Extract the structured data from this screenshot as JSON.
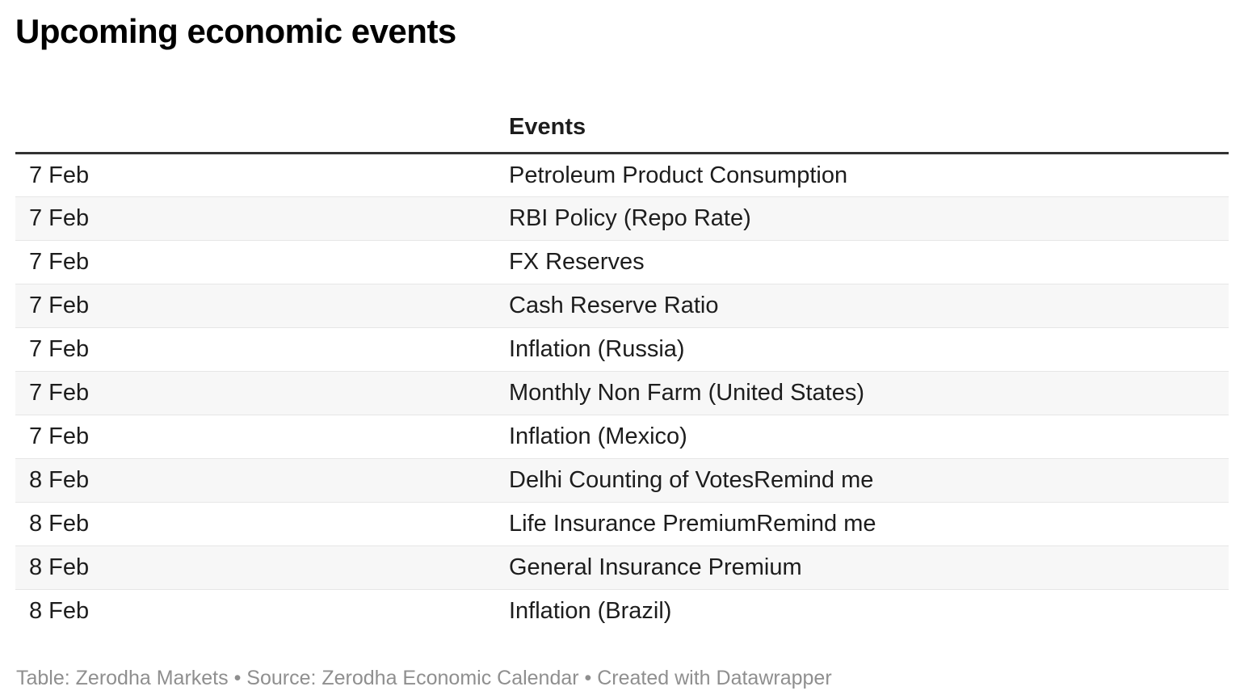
{
  "title": "Upcoming economic events",
  "chart_data": {
    "type": "table",
    "title": "Upcoming economic events",
    "columns": [
      "",
      "Events"
    ],
    "rows": [
      {
        "date": "7 Feb",
        "event": "Petroleum Product Consumption"
      },
      {
        "date": "7 Feb",
        "event": "RBI Policy (Repo Rate)"
      },
      {
        "date": "7 Feb",
        "event": "FX Reserves"
      },
      {
        "date": "7 Feb",
        "event": "Cash Reserve Ratio"
      },
      {
        "date": "7 Feb",
        "event": "Inflation (Russia)"
      },
      {
        "date": "7 Feb",
        "event": "Monthly Non Farm (United States)"
      },
      {
        "date": "7 Feb",
        "event": "Inflation (Mexico)"
      },
      {
        "date": "8 Feb",
        "event": "Delhi Counting of VotesRemind me"
      },
      {
        "date": "8 Feb",
        "event": "Life Insurance PremiumRemind me"
      },
      {
        "date": "8 Feb",
        "event": "General Insurance Premium"
      },
      {
        "date": "8 Feb",
        "event": "Inflation (Brazil)"
      }
    ],
    "layout": {
      "striped_rows": true,
      "stripe_on": "even",
      "header_rule": true
    }
  },
  "table_header": {
    "date_label": "",
    "events_label": "Events"
  },
  "footer": {
    "attribution": "Table: Zerodha Markets • Source: Zerodha Economic Calendar • Created with Datawrapper"
  },
  "colors": {
    "background": "#ffffff",
    "text": "#1d1d1d",
    "title_text": "#000000",
    "header_rule": "#333333",
    "row_stripe": "#f7f7f7",
    "row_separator": "#e6e6e6",
    "footer_text": "#8f8f8f"
  }
}
